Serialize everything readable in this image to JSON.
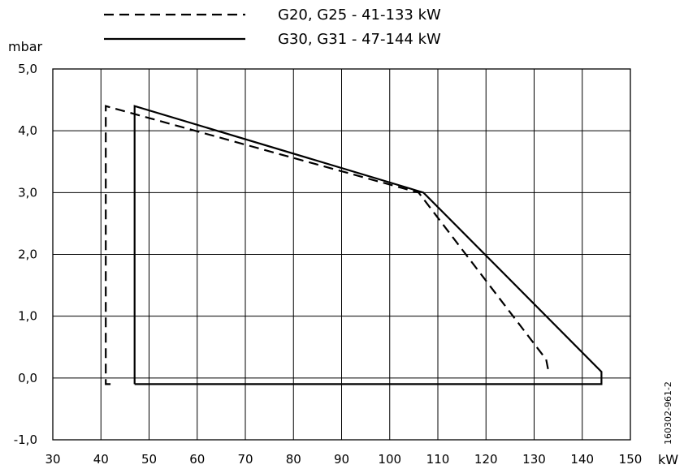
{
  "chart_data": {
    "type": "line",
    "xlabel": "kW",
    "ylabel": "mbar",
    "xlim": [
      30,
      150
    ],
    "ylim": [
      -1.0,
      5.0
    ],
    "x_ticks": [
      30,
      40,
      50,
      60,
      70,
      80,
      90,
      100,
      110,
      120,
      130,
      140,
      150
    ],
    "x_tick_labels": [
      "30",
      "40",
      "50",
      "60",
      "70",
      "80",
      "90",
      "100",
      "110",
      "120",
      "130",
      "140",
      "150"
    ],
    "y_ticks": [
      -1.0,
      0.0,
      1.0,
      2.0,
      3.0,
      4.0,
      5.0
    ],
    "y_tick_labels": [
      "-1,0",
      "0,0",
      "1,0",
      "2,0",
      "3,0",
      "4,0",
      "5,0"
    ],
    "grid": true,
    "legend_position": "top",
    "series": [
      {
        "name": "G20, G25 - 41-133 kW",
        "style": "dashed",
        "color": "#000000",
        "points": [
          [
            42,
            -0.1
          ],
          [
            41,
            -0.1
          ],
          [
            41,
            4.4
          ],
          [
            106,
            3.0
          ],
          [
            132.5,
            0.3
          ],
          [
            133,
            0.1
          ]
        ]
      },
      {
        "name": "G30, G31 - 47-144 kW",
        "style": "solid",
        "color": "#000000",
        "points": [
          [
            47,
            -0.1
          ],
          [
            47,
            4.4
          ],
          [
            107,
            3.0
          ],
          [
            144,
            0.1
          ],
          [
            144,
            -0.1
          ],
          [
            47,
            -0.1
          ]
        ]
      }
    ]
  },
  "doc_code": "160302-961-2"
}
